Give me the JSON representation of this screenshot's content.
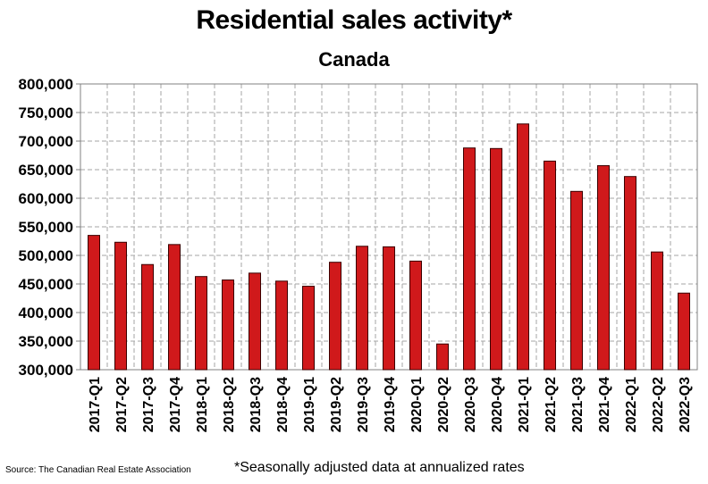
{
  "chart_data": {
    "type": "bar",
    "title": "Residential sales activity*",
    "subtitle": "Canada",
    "categories": [
      "2017-Q1",
      "2017-Q2",
      "2017-Q3",
      "2017-Q4",
      "2018-Q1",
      "2018-Q2",
      "2018-Q3",
      "2018-Q4",
      "2019-Q1",
      "2019-Q2",
      "2019-Q3",
      "2019-Q4",
      "2020-Q1",
      "2020-Q2",
      "2020-Q3",
      "2020-Q4",
      "2021-Q1",
      "2021-Q2",
      "2021-Q3",
      "2021-Q4",
      "2022-Q1",
      "2022-Q2",
      "2022-Q3"
    ],
    "values": [
      535000,
      523000,
      484000,
      519000,
      463000,
      457000,
      469000,
      455000,
      446000,
      488000,
      516000,
      515000,
      490000,
      345000,
      688000,
      687000,
      730000,
      665000,
      612000,
      657000,
      638000,
      506000,
      434000
    ],
    "ylim": [
      300000,
      800000
    ],
    "yticks": [
      300000,
      350000,
      400000,
      450000,
      500000,
      550000,
      600000,
      650000,
      700000,
      750000,
      800000
    ],
    "ytick_labels": [
      "300,000",
      "350,000",
      "400,000",
      "450,000",
      "500,000",
      "550,000",
      "600,000",
      "650,000",
      "700,000",
      "750,000",
      "800,000"
    ],
    "xlabel": "",
    "ylabel": "",
    "grid": true,
    "bar_color": "#d0191b",
    "source": "Source: The Canadian Real Estate Association",
    "footnote": "*Seasonally adjusted data at annualized rates"
  }
}
